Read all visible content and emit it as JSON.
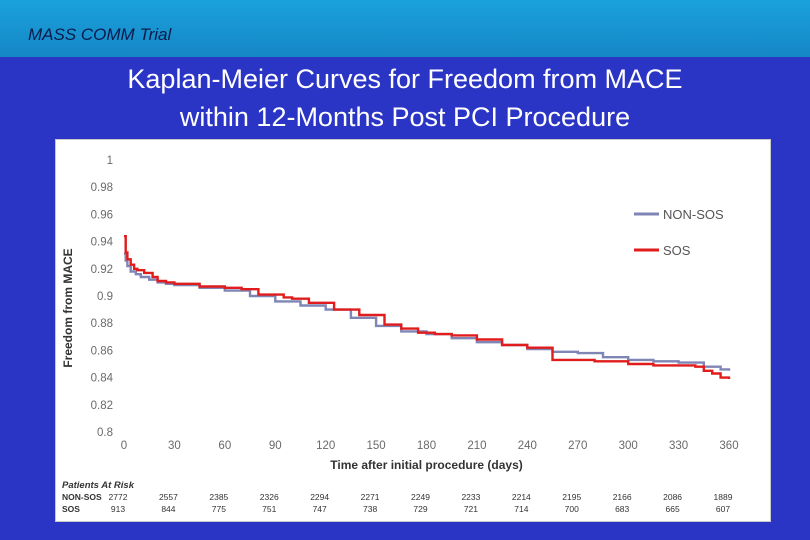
{
  "header": {
    "trial_label": "MASS COMM Trial"
  },
  "slide_title": {
    "line1": "Kaplan-Meier Curves for Freedom from MACE",
    "line2": "within 12-Months Post PCI Procedure"
  },
  "colors": {
    "background": "#2b35c5",
    "topbar": "#1aa2dc",
    "non_sos": "#7f85b5",
    "sos": "#e01c1c"
  },
  "chart_data": {
    "type": "line",
    "title": "",
    "xlabel": "Time after initial procedure (days)",
    "ylabel": "Freedom from MACE",
    "xlim": [
      0,
      360
    ],
    "ylim": [
      0.8,
      1
    ],
    "x_ticks": [
      0,
      30,
      60,
      90,
      120,
      150,
      180,
      210,
      240,
      270,
      300,
      330,
      360
    ],
    "y_ticks": [
      1,
      0.98,
      0.96,
      0.94,
      0.92,
      0.9,
      0.88,
      0.86,
      0.84,
      0.82,
      0.8
    ],
    "y_tick_labels": [
      "1",
      "0.98",
      "0.96",
      "0.94",
      "0.92",
      "0.9",
      "0.88",
      "0.86",
      "0.84",
      "0.82",
      "0.8"
    ],
    "grid": false,
    "legend_position": "top-right",
    "series": [
      {
        "name": "NON-SOS",
        "color": "#7f85b5",
        "x": [
          0,
          1,
          2,
          4,
          7,
          10,
          15,
          20,
          25,
          30,
          45,
          60,
          75,
          90,
          105,
          120,
          135,
          150,
          165,
          180,
          195,
          210,
          225,
          240,
          255,
          270,
          285,
          300,
          315,
          330,
          345,
          355,
          360
        ],
        "y": [
          0.931,
          0.926,
          0.922,
          0.918,
          0.916,
          0.914,
          0.912,
          0.91,
          0.909,
          0.908,
          0.906,
          0.904,
          0.9,
          0.896,
          0.893,
          0.89,
          0.884,
          0.878,
          0.874,
          0.872,
          0.869,
          0.866,
          0.864,
          0.861,
          0.859,
          0.858,
          0.855,
          0.853,
          0.852,
          0.851,
          0.848,
          0.846,
          0.845
        ]
      },
      {
        "name": "SOS",
        "color": "#e01c1c",
        "x": [
          0,
          1,
          2,
          4,
          6,
          8,
          12,
          17,
          20,
          25,
          30,
          45,
          60,
          70,
          80,
          95,
          100,
          110,
          125,
          140,
          155,
          165,
          175,
          185,
          195,
          210,
          225,
          240,
          255,
          270,
          280,
          300,
          315,
          330,
          340,
          345,
          350,
          355,
          360
        ],
        "y": [
          0.944,
          0.932,
          0.927,
          0.923,
          0.92,
          0.919,
          0.917,
          0.914,
          0.911,
          0.91,
          0.909,
          0.907,
          0.906,
          0.905,
          0.901,
          0.899,
          0.898,
          0.895,
          0.89,
          0.886,
          0.879,
          0.876,
          0.873,
          0.872,
          0.871,
          0.868,
          0.864,
          0.862,
          0.853,
          0.853,
          0.852,
          0.85,
          0.849,
          0.849,
          0.848,
          0.845,
          0.843,
          0.84,
          0.839
        ]
      }
    ],
    "legend": [
      "NON-SOS",
      "SOS"
    ],
    "patients_at_risk": {
      "header": "Patients At Risk",
      "rows": [
        {
          "label": "NON-SOS",
          "values": [
            "2772",
            "2557",
            "2385",
            "2326",
            "2294",
            "2271",
            "2249",
            "2233",
            "2214",
            "2195",
            "2166",
            "2086",
            "1889"
          ]
        },
        {
          "label": "SOS",
          "values": [
            "913",
            "844",
            "775",
            "751",
            "747",
            "738",
            "729",
            "721",
            "714",
            "700",
            "683",
            "665",
            "607"
          ]
        }
      ]
    }
  }
}
